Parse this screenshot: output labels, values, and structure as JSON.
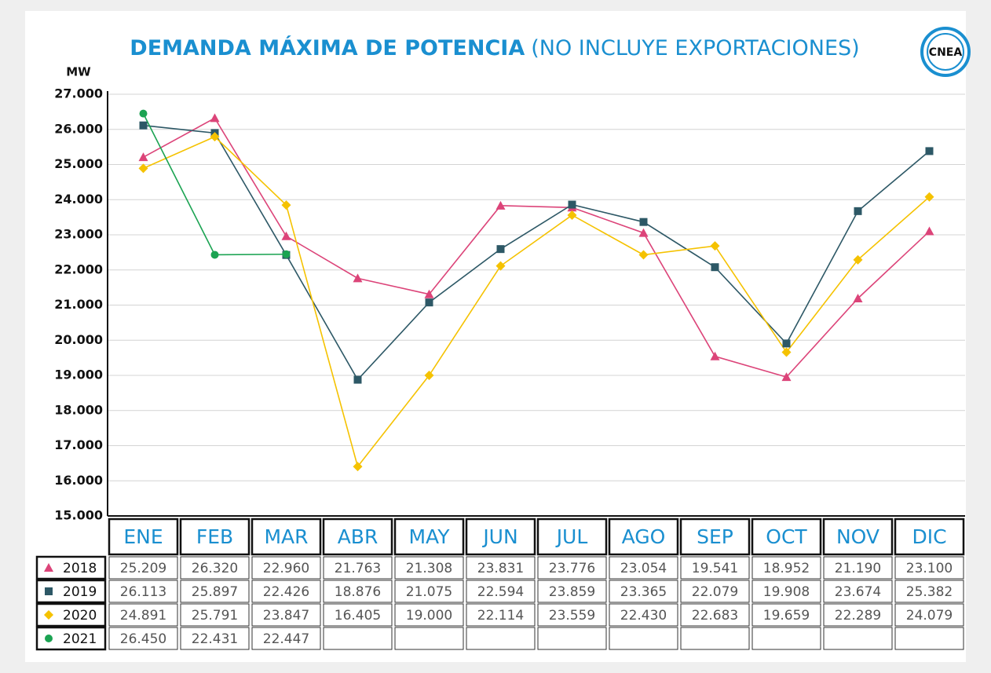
{
  "chart_data": {
    "type": "line",
    "title": "DEMANDA MÁXIMA DE POTENCIA",
    "subtitle": "(NO INCLUYE EXPORTACIONES)",
    "y_label": "MW",
    "logo": "CNEA",
    "categories": [
      "ENE",
      "FEB",
      "MAR",
      "ABR",
      "MAY",
      "JUN",
      "JUL",
      "AGO",
      "SEP",
      "OCT",
      "NOV",
      "DIC"
    ],
    "series": [
      {
        "name": "2018",
        "color": "#dc4479",
        "marker": "triangle",
        "values": [
          25209,
          26320,
          22960,
          21763,
          21308,
          23831,
          23776,
          23054,
          19541,
          18952,
          21190,
          23100
        ],
        "value_labels": [
          "25.209",
          "26.320",
          "22.960",
          "21.763",
          "21.308",
          "23.831",
          "23.776",
          "23.054",
          "19.541",
          "18.952",
          "21.190",
          "23.100"
        ]
      },
      {
        "name": "2019",
        "color": "#2d5866",
        "marker": "square",
        "values": [
          26113,
          25897,
          22426,
          18876,
          21075,
          22594,
          23859,
          23365,
          22079,
          19908,
          23674,
          25382
        ],
        "value_labels": [
          "26.113",
          "25.897",
          "22.426",
          "18.876",
          "21.075",
          "22.594",
          "23.859",
          "23.365",
          "22.079",
          "19.908",
          "23.674",
          "25.382"
        ]
      },
      {
        "name": "2020",
        "color": "#f5c200",
        "marker": "diamond",
        "values": [
          24891,
          25791,
          23847,
          16405,
          19000,
          22114,
          23559,
          22430,
          22683,
          19659,
          22289,
          24079
        ],
        "value_labels": [
          "24.891",
          "25.791",
          "23.847",
          "16.405",
          "19.000",
          "22.114",
          "23.559",
          "22.430",
          "22.683",
          "19.659",
          "22.289",
          "24.079"
        ]
      },
      {
        "name": "2021",
        "color": "#1ba352",
        "marker": "circle",
        "values": [
          26450,
          22431,
          22447,
          null,
          null,
          null,
          null,
          null,
          null,
          null,
          null,
          null
        ],
        "value_labels": [
          "26.450",
          "22.431",
          "22.447",
          null,
          null,
          null,
          null,
          null,
          null,
          null,
          null,
          null
        ]
      }
    ],
    "ylim": [
      15000,
      27000
    ],
    "yticks": [
      {
        "value": 15000,
        "label": "15.000"
      },
      {
        "value": 16000,
        "label": "16.000"
      },
      {
        "value": 17000,
        "label": "17.000"
      },
      {
        "value": 18000,
        "label": "18.000"
      },
      {
        "value": 19000,
        "label": "19.000"
      },
      {
        "value": 20000,
        "label": "20.000"
      },
      {
        "value": 21000,
        "label": "21.000"
      },
      {
        "value": 22000,
        "label": "22.000"
      },
      {
        "value": 23000,
        "label": "23.000"
      },
      {
        "value": 24000,
        "label": "24.000"
      },
      {
        "value": 25000,
        "label": "25.000"
      },
      {
        "value": 26000,
        "label": "26.000"
      },
      {
        "value": 27000,
        "label": "27.000"
      }
    ],
    "grid": true
  }
}
